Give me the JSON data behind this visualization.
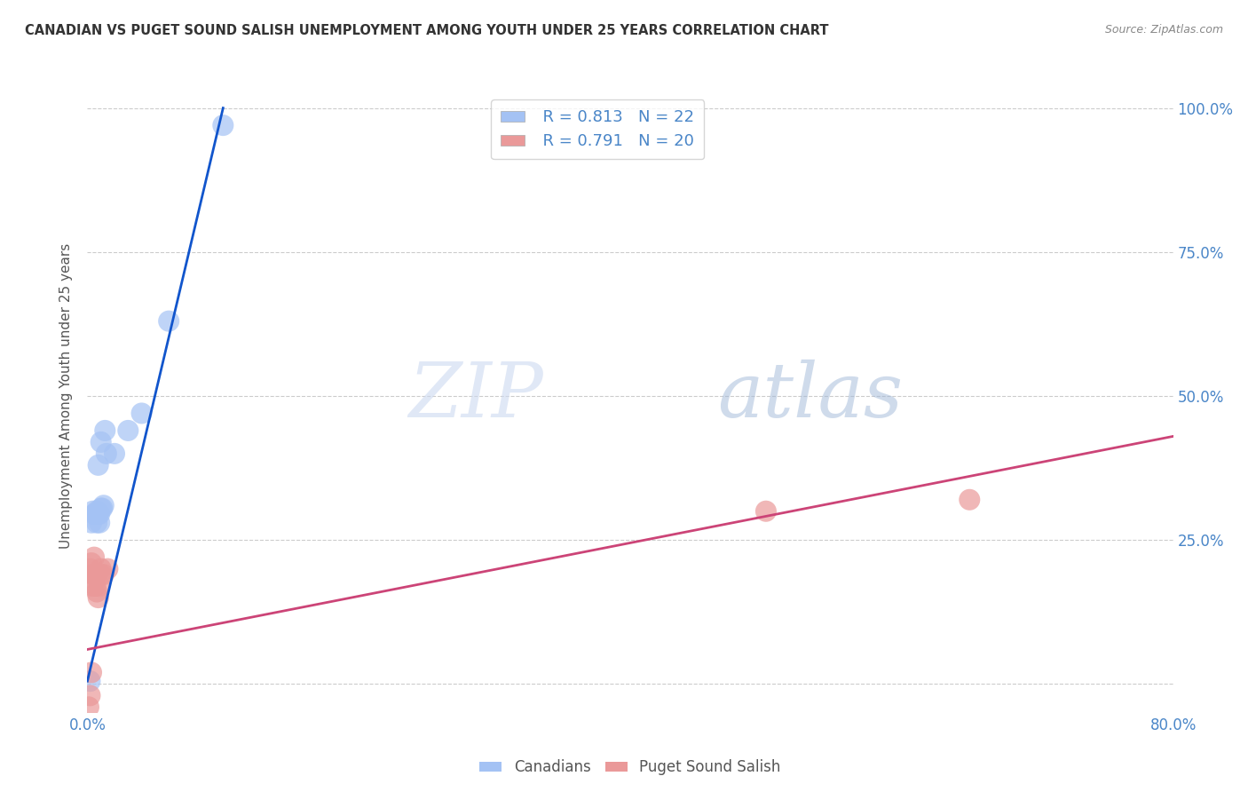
{
  "title": "CANADIAN VS PUGET SOUND SALISH UNEMPLOYMENT AMONG YOUTH UNDER 25 YEARS CORRELATION CHART",
  "source": "Source: ZipAtlas.com",
  "ylabel": "Unemployment Among Youth under 25 years",
  "xlim": [
    0.0,
    0.8
  ],
  "ylim": [
    0.0,
    1.0
  ],
  "canadians_scatter_x": [
    0.002,
    0.003,
    0.004,
    0.005,
    0.006,
    0.007,
    0.007,
    0.008,
    0.008,
    0.009,
    0.009,
    0.01,
    0.01,
    0.011,
    0.012,
    0.013,
    0.014,
    0.02,
    0.03,
    0.04,
    0.06,
    0.1
  ],
  "canadians_scatter_y": [
    0.005,
    0.28,
    0.3,
    0.295,
    0.295,
    0.3,
    0.28,
    0.38,
    0.295,
    0.295,
    0.28,
    0.42,
    0.305,
    0.305,
    0.31,
    0.44,
    0.4,
    0.4,
    0.44,
    0.47,
    0.63,
    0.97
  ],
  "puget_scatter_x": [
    0.001,
    0.002,
    0.002,
    0.003,
    0.003,
    0.004,
    0.004,
    0.005,
    0.005,
    0.006,
    0.006,
    0.007,
    0.008,
    0.009,
    0.01,
    0.01,
    0.012,
    0.015,
    0.5,
    0.65
  ],
  "puget_scatter_y": [
    -0.04,
    -0.02,
    0.2,
    0.21,
    0.02,
    0.17,
    0.19,
    0.22,
    0.19,
    0.17,
    0.19,
    0.16,
    0.15,
    0.17,
    0.19,
    0.2,
    0.19,
    0.2,
    0.3,
    0.32
  ],
  "canadians_line_x": [
    0.0,
    0.1
  ],
  "canadians_line_y": [
    0.005,
    1.0
  ],
  "puget_line_x": [
    0.0,
    0.8
  ],
  "puget_line_y": [
    0.06,
    0.43
  ],
  "canadians_R": 0.813,
  "canadians_N": 22,
  "puget_R": 0.791,
  "puget_N": 20,
  "canadians_color": "#a4c2f4",
  "puget_color": "#ea9999",
  "canadians_line_color": "#1155cc",
  "puget_line_color": "#cc4477",
  "legend_label_canadians": "Canadians",
  "legend_label_puget": "Puget Sound Salish",
  "watermark_zip": "ZIP",
  "watermark_atlas": "atlas",
  "background_color": "#ffffff",
  "grid_color": "#cccccc"
}
